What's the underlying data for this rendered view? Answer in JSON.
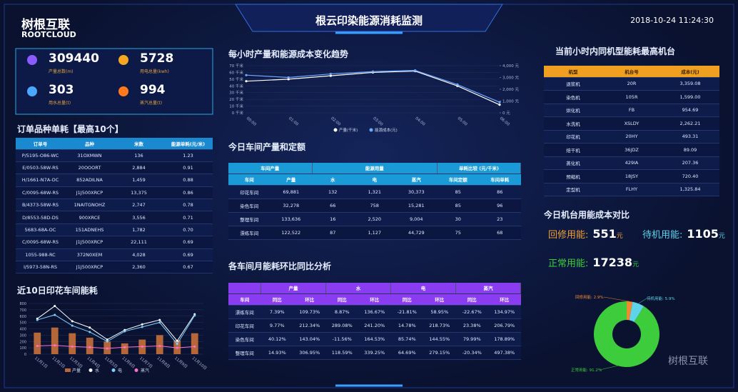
{
  "header": {
    "logo": "树根互联",
    "logo_en": "ROOTCLOUD",
    "title": "根云印染能源消耗监测",
    "datetime": "2018-10-24 11:24:30"
  },
  "kpis": [
    {
      "value": 309440,
      "label": "产量总数(m)",
      "color": "#8a5cff"
    },
    {
      "value": 5728,
      "label": "用电总量(kwh)",
      "color": "#f5a623"
    },
    {
      "value": 303,
      "label": "用水总量(t)",
      "color": "#4aa8ff"
    },
    {
      "value": 994,
      "label": "蒸汽总量(t)",
      "color": "#ff7a1a"
    }
  ],
  "orders": {
    "title": "订单品种单耗【最高10个】",
    "columns": [
      "订单号",
      "品种",
      "米数",
      "能源单耗(元/米)"
    ],
    "rows": [
      [
        "P/5195-O86-WC",
        "31OXMWN",
        "136",
        "1.23"
      ],
      [
        "E/0503-58W-RS",
        "20OOORT",
        "2,884",
        "0.91"
      ],
      [
        "H/1661-N7A-OC",
        "852ADILNA",
        "1,459",
        "0.88"
      ],
      [
        "C/0095-68W-RS",
        "J1J500XRCP",
        "13,375",
        "0.86"
      ],
      [
        "B/4373-58W-RS",
        "1NAITGNOHZ",
        "2,747",
        "0.78"
      ],
      [
        "D/8553-58D-DS",
        "900XRCE",
        "3,556",
        "0.71"
      ],
      [
        "5683-68A-OC",
        "151ADNEHS",
        "1,782",
        "0.70"
      ],
      [
        "C/0095-68W-RS",
        "J1J500XRCP",
        "22,111",
        "0.69"
      ],
      [
        "1055-988-RC",
        "372N0XEM",
        "4,028",
        "0.69"
      ],
      [
        "I/5973-58N-RS",
        "J1J500XRCP",
        "2,360",
        "0.67"
      ]
    ]
  },
  "workshop": {
    "title": "今日车间产量和定额",
    "groups": [
      {
        "label": "车间产量",
        "span": 2
      },
      {
        "label": "能源用量",
        "span": 3
      },
      {
        "label": "单耗比较 (元/千米)",
        "span": 2
      }
    ],
    "columns": [
      "车间",
      "产量",
      "水",
      "电",
      "蒸汽",
      "车间定额",
      "车间单耗"
    ],
    "rows": [
      [
        "印花车间",
        "69,881",
        "132",
        "1,321",
        "30,373",
        "85",
        "86"
      ],
      [
        "染色车间",
        "32,278",
        "66",
        "758",
        "15,281",
        "85",
        "96"
      ],
      [
        "整理车间",
        "133,636",
        "16",
        "2,520",
        "9,004",
        "30",
        "23"
      ],
      [
        "漂练车间",
        "122,522",
        "87",
        "1,127",
        "44,729",
        "75",
        "68"
      ]
    ]
  },
  "monthly": {
    "title": "各车间月能耗环比同比分析",
    "groups": [
      {
        "label": "",
        "span": 1
      },
      {
        "label": "产量",
        "span": 2
      },
      {
        "label": "水",
        "span": 2
      },
      {
        "label": "电",
        "span": 2
      },
      {
        "label": "蒸汽",
        "span": 2
      }
    ],
    "columns": [
      "车间",
      "同比",
      "环比",
      "同比",
      "环比",
      "同比",
      "环比",
      "同比",
      "环比"
    ],
    "rows": [
      [
        "漂练车间",
        "7.39%",
        "109.73%",
        "8.87%",
        "136.67%",
        "-21.81%",
        "58.95%",
        "-22.67%",
        "134.97%"
      ],
      [
        "印花车间",
        "9.77%",
        "212.34%",
        "289.08%",
        "241.20%",
        "14.78%",
        "218.73%",
        "23.38%",
        "206.79%"
      ],
      [
        "染色车间",
        "40.12%",
        "143.04%",
        "-11.56%",
        "164.53%",
        "85.74%",
        "144.55%",
        "79.99%",
        "178.89%"
      ],
      [
        "整理车间",
        "14.93%",
        "306.95%",
        "118.59%",
        "339.25%",
        "64.69%",
        "279.15%",
        "-20.34%",
        "497.38%"
      ]
    ]
  },
  "machines": {
    "title": "当前小时内同机型能耗最高机台",
    "columns": [
      "机型",
      "机台号",
      "成本(元)"
    ],
    "rows": [
      [
        "退浆机",
        "20R",
        "3,359.08"
      ],
      [
        "染色机",
        "105R",
        "1,599.00"
      ],
      [
        "烘化机",
        "FB",
        "954.69"
      ],
      [
        "水洗机",
        "XSLDY",
        "2,262.21"
      ],
      [
        "印花机",
        "20HY",
        "493.31"
      ],
      [
        "焙干机",
        "36JDZ",
        "89.09"
      ],
      [
        "蒸化机",
        "429IA",
        "207.36"
      ],
      [
        "预缩机",
        "18JSY",
        "720.40"
      ],
      [
        "定型机",
        "FLHY",
        "1,325.84"
      ]
    ]
  },
  "cost": {
    "title": "今日机台用能成本对比",
    "items": [
      {
        "label": "回修用能:",
        "value": 551,
        "unit": "元",
        "color": "#f0a030"
      },
      {
        "label": "待机用能:",
        "value": 1105,
        "unit": "元",
        "color": "#5fd4e8"
      },
      {
        "label": "正常用能:",
        "value": 17238,
        "unit": "元",
        "color": "#3ccc3c"
      }
    ]
  },
  "watermark": "树根互联",
  "chart_data": [
    {
      "type": "line",
      "title": "每小时产量和能源成本变化趋势",
      "categories": [
        "00:00",
        "01:00",
        "02:00",
        "03:00",
        "04:00",
        "05:00",
        "06:00"
      ],
      "series": [
        {
          "name": "产量(千米)",
          "color": "#ffffff",
          "values": [
            47,
            50,
            55,
            60,
            62,
            40,
            12
          ]
        },
        {
          "name": "能源成本(元)",
          "color": "#6fa8ff",
          "axis": "y2",
          "values": [
            3200,
            3000,
            3300,
            3500,
            3600,
            2400,
            900
          ]
        }
      ],
      "ylim": [
        0,
        70
      ],
      "yticks": [
        {
          "value": 0,
          "label": "0 千米"
        },
        {
          "value": 10,
          "label": "10 千米"
        },
        {
          "value": 20,
          "label": "20 千米"
        },
        {
          "value": 30,
          "label": "30 千米"
        },
        {
          "value": 40,
          "label": "40 千米"
        },
        {
          "value": 50,
          "label": "50 千米"
        },
        {
          "value": 60,
          "label": "60 千米"
        },
        {
          "value": 70,
          "label": "70 千米"
        }
      ],
      "y2lim": [
        0,
        4000
      ],
      "y2ticks": [
        {
          "value": 0,
          "label": "0 元"
        },
        {
          "value": 1000,
          "label": "1,000 元"
        },
        {
          "value": 2000,
          "label": "2,000 元"
        },
        {
          "value": 3000,
          "label": "3,000 元"
        },
        {
          "value": 4000,
          "label": "4,000 元"
        }
      ],
      "grid": true
    },
    {
      "type": "bar",
      "title": "近10日印花车间能耗",
      "categories": [
        "11月1日",
        "11月2日",
        "11月3日",
        "11月4日",
        "11月5日",
        "11月6日",
        "11月7日",
        "11月8日",
        "11月9日",
        "11月10日"
      ],
      "series": [
        {
          "name": "产量",
          "color": "#b5673a",
          "mark": "bar",
          "values": [
            340,
            420,
            330,
            260,
            200,
            170,
            230,
            300,
            220,
            330
          ]
        },
        {
          "name": "水",
          "color": "#ffffff",
          "mark": "line",
          "values": [
            560,
            760,
            520,
            420,
            230,
            380,
            470,
            540,
            210,
            630
          ]
        },
        {
          "name": "电",
          "color": "#7fd0ff",
          "mark": "line",
          "values": [
            540,
            620,
            450,
            350,
            200,
            360,
            430,
            500,
            160,
            610
          ]
        },
        {
          "name": "蒸汽",
          "color": "#ff6fd0",
          "mark": "line",
          "values": [
            130,
            140,
            120,
            110,
            90,
            110,
            120,
            130,
            100,
            120
          ]
        }
      ],
      "ylim": [
        0,
        800
      ],
      "yticks": [
        0,
        100,
        200,
        300,
        400,
        500,
        600,
        700,
        800
      ],
      "grid": true
    },
    {
      "type": "pie",
      "values": [
        2.9,
        5.9,
        91.2
      ],
      "value_labels": [
        "回修用能: 2.9%",
        "待机用能: 5.9%",
        "正常用能: 91.2%"
      ],
      "colors": [
        "#f08a30",
        "#5fd4e8",
        "#3ccc3c"
      ]
    }
  ]
}
